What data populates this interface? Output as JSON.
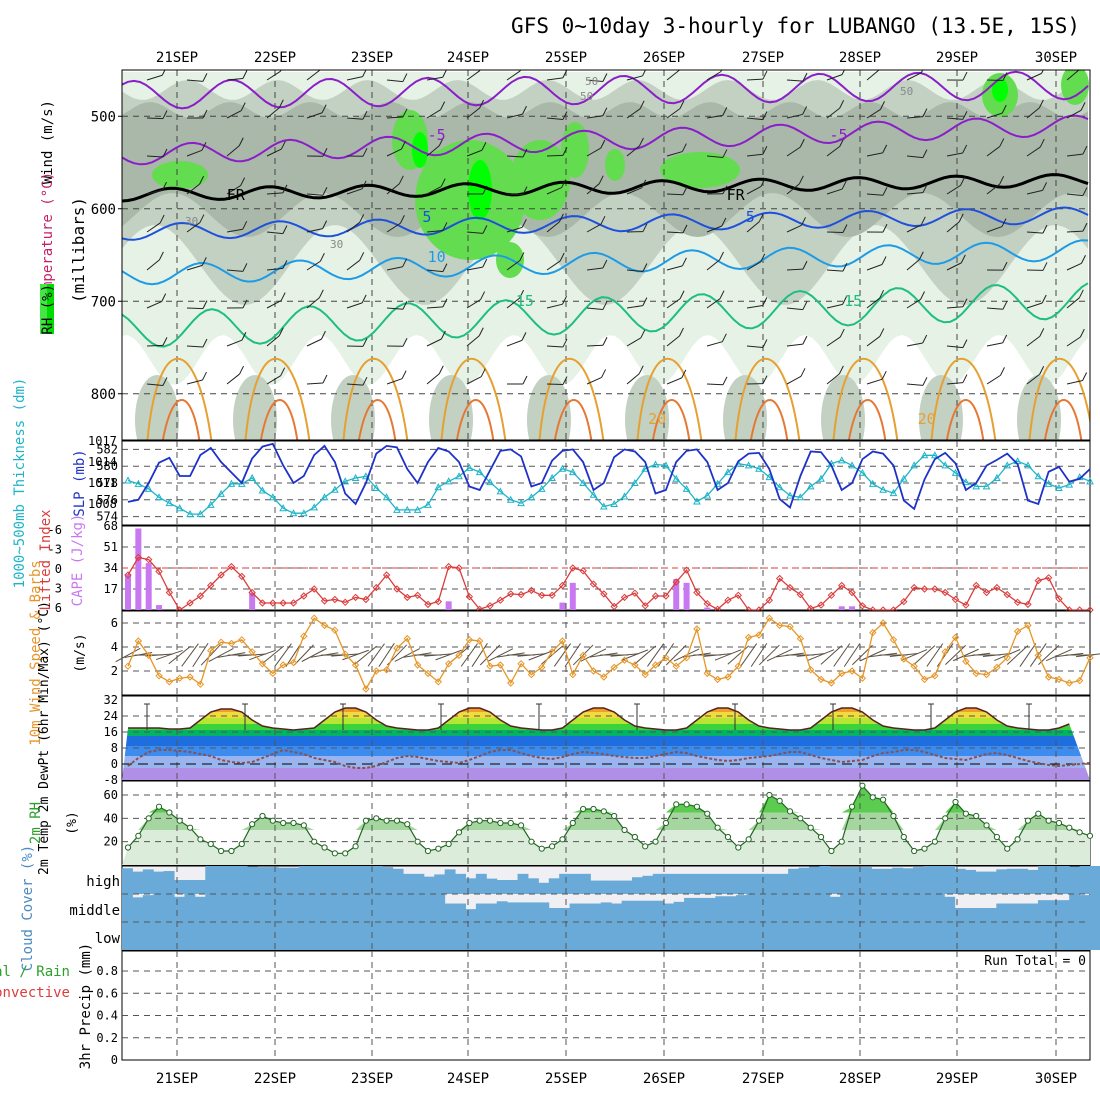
{
  "title": "GFS 0~10day 3-hourly for LUBANGO (13.5E, 15S)",
  "run_total": "Run Total = 0",
  "colors": {
    "rh_light": "#e6f2e6",
    "rh_mid": "#c8d8c8",
    "rh_grey": "#a8b8a8",
    "rh_green": "#64dc50",
    "rh_bright": "#00ff00",
    "temp_violet": "#8a1ec8",
    "temp_freeze": "#000000",
    "temp_blue": "#1e50dc",
    "temp_lightblue": "#1e9be6",
    "temp_teal": "#1ebe82",
    "temp_orange": "#e6a032",
    "temp_darkorange": "#e67832",
    "temp_red": "#c81e64",
    "slp": "#1e32c8",
    "thickness": "#1eb4c8",
    "cape": "#c878f0",
    "lifted_index": "#dc3c3c",
    "wind_speed": "#e69628",
    "barb": "#505050",
    "rh2m": "#2ca02c",
    "cloud": "#6aaad8",
    "cloud_clear": "#f0f0f4"
  },
  "chart_data": [
    {
      "id": "upper-air",
      "type": "contour",
      "x_label_ticks": [
        "21SEP",
        "22SEP",
        "23SEP",
        "24SEP",
        "25SEP",
        "26SEP",
        "27SEP",
        "28SEP",
        "29SEP",
        "30SEP"
      ],
      "ylabel": "(millibars)",
      "legend_labels": [
        "RH (%)",
        "Temperature (°C)",
        "Wind (m/s)"
      ],
      "y_ticks": [
        500,
        600,
        700,
        800
      ],
      "ylim": [
        850,
        450
      ],
      "temperature_contours": [
        {
          "level": "-5",
          "label_positions_day": [
            2.75,
            6.85
          ]
        },
        {
          "level": "FR",
          "label_positions_day": [
            0.7,
            5.8
          ]
        },
        {
          "level": "5",
          "label_positions_day": [
            2.65,
            5.95
          ]
        },
        {
          "level": "10",
          "label_positions_day": [
            2.75
          ]
        },
        {
          "level": "15",
          "label_positions_day": [
            3.65,
            7.0
          ]
        },
        {
          "level": "20",
          "label_positions_day": [
            5.0,
            7.75
          ]
        }
      ],
      "rh_labels": [
        "30",
        "50"
      ]
    },
    {
      "id": "thickness-slp",
      "type": "line",
      "left_label": "1000~500mb Thickness (dm)",
      "right_label": "SLP (mb)",
      "left_ticks": [
        574,
        576,
        578,
        580,
        582
      ],
      "right_ticks": [
        1008,
        1011,
        1014,
        1017
      ],
      "series": [
        {
          "name": "SLP",
          "values": [
            1008.3,
            1008.6,
            1011,
            1013.9,
            1014.6,
            1012,
            1012,
            1015,
            1016,
            1014,
            1012.5,
            1011,
            1014.5,
            1016.2,
            1016.6,
            1013.5,
            1011,
            1012,
            1015,
            1016.3,
            1014,
            1009.5,
            1008,
            1011,
            1015.2,
            1016.3,
            1016.1,
            1013,
            1011,
            1014,
            1016,
            1015.5,
            1014,
            1010.5,
            1010,
            1012.8,
            1015.6,
            1015.8,
            1014.8,
            1010.5,
            1011,
            1014.2,
            1015.6,
            1015.8,
            1014,
            1010,
            1011,
            1014.7,
            1015.8,
            1015.5,
            1014,
            1009.5,
            1010,
            1014,
            1015.6,
            1015.8,
            1014,
            1010,
            1011,
            1014.1,
            1015.2,
            1015.3,
            1013,
            1008.7,
            1007.5,
            1012,
            1015.5,
            1015.4,
            1013.5,
            1010,
            1011,
            1014.4,
            1015.5,
            1015.2,
            1013.5,
            1008.5,
            1007.3,
            1011.5,
            1014.4,
            1015.3,
            1013.8,
            1010,
            1011,
            1013.5,
            1014.3,
            1015.2,
            1013.7,
            1008.5,
            1008,
            1012.6,
            1013.3,
            1011.2,
            1011.6,
            1013
          ]
        },
        {
          "name": "Thickness",
          "values": [
            578.3,
            577.9,
            577.3,
            576.3,
            575.6,
            575,
            574.3,
            574.3,
            575.4,
            576.7,
            577.9,
            577.9,
            578.6,
            577.1,
            576.3,
            575,
            574.4,
            574.4,
            575.1,
            576.3,
            577.2,
            578.2,
            578.6,
            578.8,
            577.4,
            576.3,
            574.8,
            574.8,
            574.8,
            575.4,
            577.5,
            578.2,
            578.8,
            579.8,
            579.3,
            578.1,
            577,
            576,
            575.6,
            576.3,
            577.3,
            578.6,
            579.7,
            579.3,
            578,
            576.6,
            575.2,
            575.5,
            576.4,
            578,
            579.7,
            580.2,
            580.1,
            578.5,
            577.3,
            575.8,
            576.5,
            577.9,
            579.3,
            580.3,
            580.1,
            579.7,
            578.7,
            577.5,
            576.5,
            576.3,
            577.6,
            578.5,
            580.3,
            580.7,
            580.1,
            579.2,
            577.9,
            577.2,
            576.8,
            578.5,
            580.1,
            581.3,
            581.3,
            580.1,
            579.2,
            578.1,
            577.6,
            577.6,
            578.6,
            580.1,
            580.6,
            580.1,
            578.8,
            577.9,
            577.4,
            577.8,
            578.7,
            578.2
          ]
        }
      ]
    },
    {
      "id": "cape-li",
      "type": "bar+line",
      "left_label": "Lifted Index",
      "right_label": "CAPE (J/kg)",
      "left_ticks": [
        "-6",
        "-3",
        "0",
        "3",
        "6"
      ],
      "right_ticks": [
        17,
        34,
        51,
        68
      ],
      "cape_values": [
        29,
        66,
        38,
        4,
        0,
        0,
        0,
        0,
        0,
        0,
        0,
        0,
        14,
        0,
        0,
        0,
        0,
        0,
        0,
        0,
        0,
        0,
        0,
        0,
        0,
        0,
        0,
        0,
        0,
        0,
        0,
        7,
        0,
        0,
        0,
        0,
        0,
        0,
        0,
        0,
        0,
        0,
        6,
        22,
        0,
        0,
        0,
        0,
        0,
        0,
        0,
        0,
        0,
        25,
        22,
        0,
        2,
        0,
        0,
        0,
        0,
        0,
        0,
        0,
        0,
        0,
        0,
        0,
        0,
        3,
        3,
        0,
        0,
        0,
        0,
        0,
        0,
        0,
        0,
        0,
        0,
        0,
        0,
        0,
        0,
        0,
        0,
        0,
        0,
        0,
        0,
        0,
        0,
        0
      ],
      "li_values": [
        1,
        -1.5,
        -1.2,
        0.5,
        3.5,
        6,
        5,
        4,
        2.5,
        1,
        -0.2,
        1.2,
        3.5,
        5,
        5,
        5,
        5,
        4,
        3,
        4.7,
        4.5,
        4.9,
        4.2,
        4.5,
        2.8,
        1,
        3,
        4.2,
        3.9,
        5.2,
        4.8,
        -0.2,
        0,
        4.1,
        5.9,
        5.4,
        4.6,
        3.7,
        3.8,
        3.2,
        3.9,
        3.9,
        2.5,
        0,
        0.4,
        2.3,
        3.7,
        5.5,
        4.2,
        3.6,
        5.4,
        4,
        4,
        2,
        0.3,
        3.5,
        5.1,
        5.9,
        4.6,
        3.9,
        6,
        6,
        4.6,
        1.5,
        2.8,
        3.8,
        5.8,
        5.3,
        3.9,
        2.5,
        3.5,
        5.4,
        6,
        6.2,
        6,
        4.8,
        2.8,
        3,
        3,
        3.5,
        4.5,
        5.3,
        2.5,
        3.5,
        2.8,
        3.8,
        4.9,
        5.2,
        1.8,
        1.4,
        4.4,
        6,
        6.1,
        6
      ]
    },
    {
      "id": "wind10m",
      "type": "line",
      "left_label": "10m Wind Speed & Barbs",
      "unit_label": "(m/s)",
      "y_ticks": [
        2,
        4,
        6
      ],
      "values": [
        2.4,
        4.5,
        3.3,
        1.6,
        1.1,
        1.4,
        1.5,
        0.9,
        3.7,
        4.4,
        4.3,
        4.6,
        3.6,
        2.6,
        1.8,
        2.5,
        2.7,
        4.9,
        6.4,
        5.8,
        5.4,
        3.4,
        2.5,
        0.5,
        2,
        2.1,
        3.9,
        4.7,
        2.5,
        1.8,
        1.1,
        2.6,
        3.3,
        4.6,
        4.5,
        2.4,
        2.5,
        1,
        2.6,
        1.7,
        2.3,
        3.6,
        4.5,
        1.7,
        3.3,
        2,
        1.5,
        2.3,
        2.9,
        2.5,
        1.7,
        2.5,
        3.1,
        2.4,
        3.1,
        5.5,
        1.8,
        1.3,
        1.5,
        2.4,
        4.8,
        5,
        6.4,
        5.8,
        5.7,
        4.7,
        2.1,
        1.3,
        1,
        1.8,
        2,
        1.4,
        5.2,
        6,
        4.6,
        3,
        2.4,
        1.3,
        1.6,
        3.6,
        4.8,
        2.8,
        1.8,
        1.7,
        2.3,
        3.1,
        5.3,
        5.8,
        3.3,
        1.5,
        1.3,
        1,
        1.2,
        3.1
      ]
    },
    {
      "id": "temp2m",
      "type": "line+band",
      "left_label": "2m Temp 2m DewPt (6hr Min/Max) (°C)",
      "y_ticks": [
        "-8",
        "0",
        "8",
        "16",
        "24",
        "32"
      ],
      "temp_values": [
        18,
        18,
        18,
        18,
        17.5,
        17.5,
        18,
        22,
        26,
        27.5,
        27.5,
        26,
        22,
        19,
        18,
        17.5,
        17,
        17.5,
        18,
        22,
        26,
        28,
        28,
        26,
        22,
        19,
        18,
        17.5,
        17,
        17,
        18,
        22,
        26,
        28,
        28,
        26,
        22,
        19,
        18,
        17.5,
        17,
        17,
        18,
        22,
        26,
        28,
        28,
        26,
        22,
        19,
        18,
        17.5,
        17,
        17,
        18,
        22,
        26,
        28,
        28,
        26,
        22,
        19,
        18,
        17.5,
        17,
        17,
        18,
        22,
        26,
        28,
        28,
        26,
        22,
        19,
        18,
        17.5,
        17,
        17,
        18,
        22,
        26,
        28,
        28,
        26,
        22,
        19,
        18,
        17.5,
        17,
        17,
        18,
        20
      ],
      "dewpoint_values": [
        -1,
        3,
        6,
        7,
        7,
        6.5,
        6,
        5,
        4,
        2,
        1,
        0.5,
        1,
        3,
        5,
        7,
        6,
        5,
        3,
        2,
        1,
        -1,
        -2,
        -2,
        -1,
        1,
        3,
        4,
        3.5,
        2.5,
        1.5,
        1,
        0.5,
        2,
        4,
        6,
        7,
        7,
        5.5,
        4,
        3,
        2.5,
        3.5,
        5,
        6,
        5.5,
        5,
        4,
        3.5,
        3,
        3,
        4,
        5,
        6,
        5.5,
        4,
        3,
        2,
        1.5,
        2,
        3,
        3.5,
        4,
        5,
        6,
        6,
        4.5,
        3,
        2,
        1,
        1.5,
        2,
        4,
        5.5,
        6,
        7,
        7,
        6,
        4.5,
        3,
        2.5,
        2,
        3.5,
        5,
        5.5,
        4.5,
        3,
        1.5,
        0.5,
        -0.5,
        -1,
        -0.5,
        0,
        0.5
      ]
    },
    {
      "id": "rh2m",
      "type": "area",
      "left_label": "2m RH",
      "unit_label": "(%)",
      "y_ticks": [
        20,
        40,
        60
      ],
      "values": [
        15,
        25,
        40,
        50,
        45,
        38,
        32,
        22,
        18,
        12,
        12,
        18,
        35,
        42,
        38,
        36,
        36,
        34,
        20,
        15,
        10,
        10,
        16,
        38,
        40,
        38,
        38,
        35,
        20,
        12,
        14,
        18,
        28,
        36,
        38,
        38,
        36,
        36,
        34,
        20,
        14,
        16,
        22,
        36,
        48,
        48,
        46,
        42,
        30,
        24,
        16,
        20,
        36,
        52,
        52,
        50,
        44,
        32,
        24,
        15,
        22,
        38,
        60,
        55,
        46,
        40,
        32,
        24,
        12,
        20,
        50,
        68,
        58,
        56,
        42,
        24,
        12,
        14,
        20,
        40,
        54,
        44,
        42,
        34,
        24,
        14,
        22,
        38,
        44,
        38,
        36,
        32,
        28,
        25
      ]
    },
    {
      "id": "cloud",
      "type": "bar",
      "left_label": "Cloud Cover (%)",
      "layer_labels": [
        "high",
        "middle",
        "low"
      ],
      "high_values": [
        92,
        80,
        88,
        80,
        82,
        50,
        50,
        50,
        100,
        100,
        100,
        100,
        98,
        96,
        96,
        94,
        94,
        100,
        100,
        100,
        100,
        100,
        100,
        100,
        100,
        96,
        90,
        72,
        72,
        62,
        70,
        88,
        72,
        56,
        72,
        55,
        50,
        50,
        72,
        56,
        40,
        56,
        72,
        72,
        72,
        48,
        48,
        48,
        48,
        60,
        65,
        72,
        72,
        72,
        72,
        72,
        72,
        72,
        72,
        72,
        72,
        72,
        72,
        72,
        90,
        94,
        98,
        100,
        96,
        96,
        96,
        96,
        90,
        90,
        94,
        92,
        96,
        100,
        100,
        100,
        90,
        86,
        80,
        80,
        88,
        90,
        90,
        86,
        100,
        100,
        100,
        98,
        100,
        100
      ],
      "middle_values": [
        100,
        88,
        96,
        100,
        100,
        90,
        100,
        90,
        100,
        100,
        100,
        100,
        100,
        100,
        100,
        100,
        100,
        100,
        100,
        100,
        100,
        100,
        100,
        100,
        100,
        100,
        100,
        100,
        100,
        100,
        100,
        66,
        66,
        46,
        66,
        66,
        74,
        70,
        70,
        70,
        70,
        50,
        50,
        66,
        66,
        66,
        70,
        66,
        76,
        76,
        76,
        76,
        66,
        72,
        86,
        86,
        86,
        92,
        92,
        96,
        100,
        100,
        100,
        100,
        100,
        100,
        100,
        100,
        90,
        100,
        100,
        100,
        100,
        100,
        100,
        100,
        100,
        100,
        100,
        90,
        50,
        50,
        50,
        50,
        66,
        66,
        66,
        66,
        78,
        78,
        78,
        100,
        96,
        100
      ],
      "low_values": [
        100,
        100,
        100,
        100,
        100,
        100,
        100,
        100,
        100,
        100,
        100,
        100,
        100,
        100,
        100,
        100,
        100,
        100,
        100,
        100,
        100,
        100,
        100,
        100,
        100,
        100,
        100,
        100,
        100,
        100,
        100,
        100,
        100,
        100,
        100,
        100,
        100,
        100,
        100,
        100,
        100,
        100,
        100,
        100,
        100,
        100,
        100,
        100,
        100,
        100,
        100,
        100,
        100,
        100,
        100,
        100,
        100,
        100,
        100,
        100,
        100,
        100,
        100,
        100,
        100,
        100,
        100,
        100,
        100,
        100,
        100,
        100,
        100,
        100,
        100,
        100,
        100,
        100,
        100,
        100,
        100,
        100,
        100,
        100,
        100,
        100,
        100,
        100,
        100,
        100,
        100,
        100,
        100,
        100
      ]
    },
    {
      "id": "precip",
      "type": "bar",
      "left_label": "3hr Precip (mm)",
      "legend_labels": [
        "Total / Rain",
        "Convective"
      ],
      "y_ticks": [
        "0",
        "0.2",
        "0.4",
        "0.6",
        "0.8"
      ],
      "values": []
    }
  ]
}
